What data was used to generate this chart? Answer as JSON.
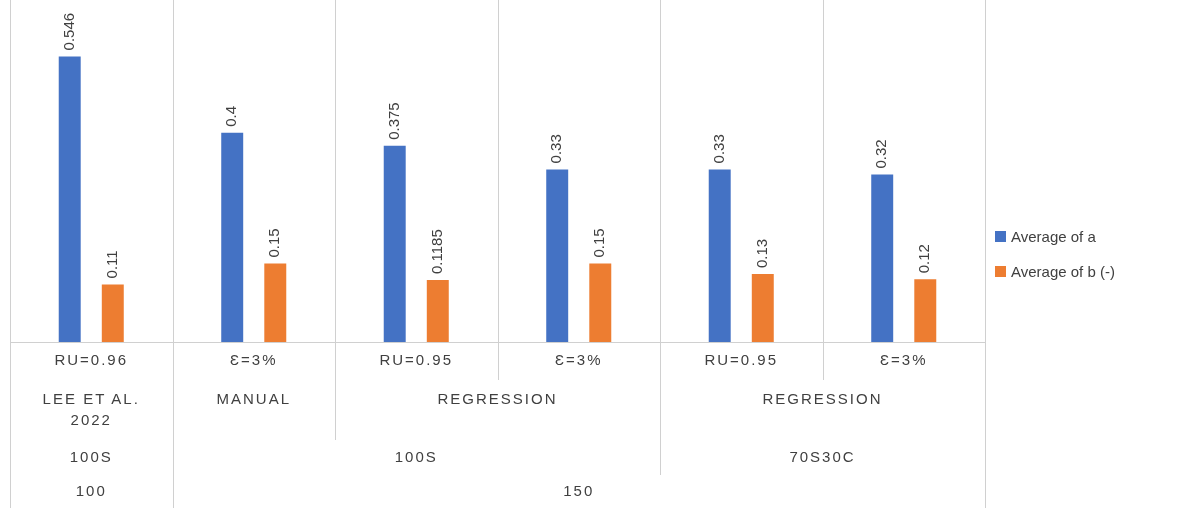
{
  "chart_data": {
    "type": "bar",
    "categories": [
      "RU=0.96",
      "Ɛ=3%",
      "RU=0.95",
      "Ɛ=3%",
      "RU=0.95",
      "Ɛ=3%"
    ],
    "series": [
      {
        "name": "Average of a",
        "color": "#4472c4",
        "values": [
          0.546,
          0.4,
          0.375,
          0.33,
          0.33,
          0.32
        ]
      },
      {
        "name": "Average of b (-)",
        "color": "#ed7d31",
        "values": [
          0.11,
          0.15,
          0.1185,
          0.15,
          0.13,
          0.12
        ]
      }
    ],
    "annotations": [
      "LEE ET AL. 2022",
      "MANUAL",
      "REGRESSION",
      "REGRESSION",
      "100S",
      "100S",
      "70S30C",
      "100",
      "150"
    ],
    "data_labels": true,
    "legend": "right"
  }
}
